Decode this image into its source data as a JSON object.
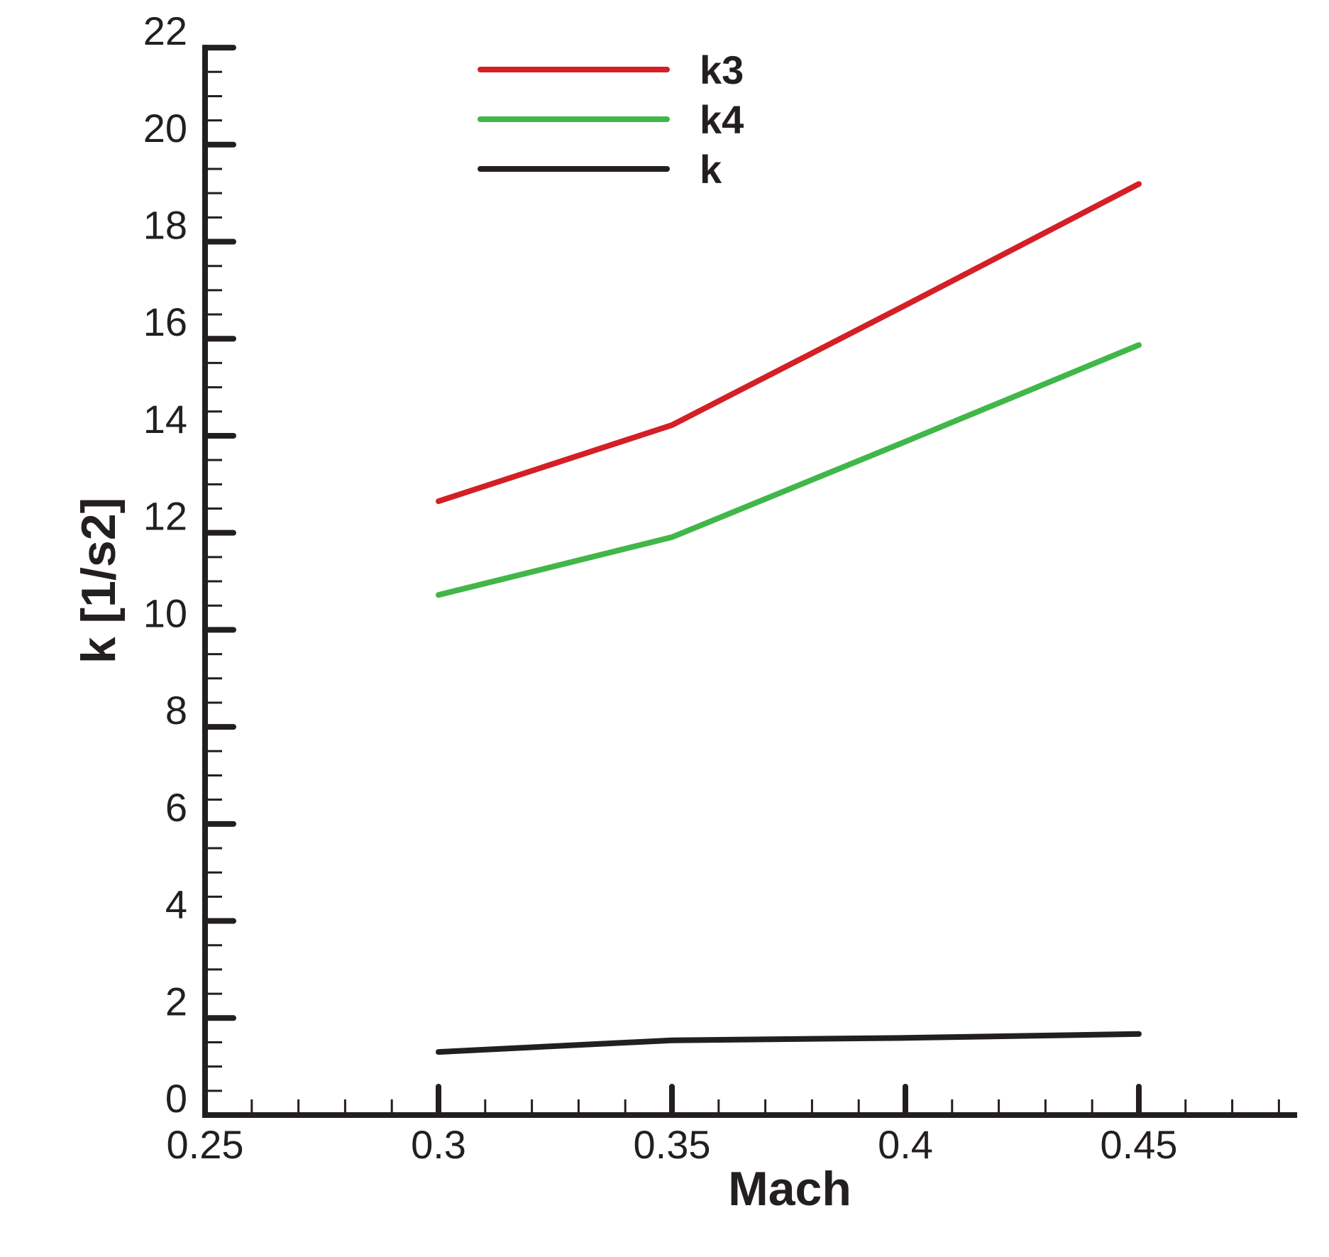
{
  "chart_data": {
    "type": "line",
    "title": "",
    "xlabel": "Mach",
    "ylabel": "k [1/s2]",
    "x": [
      0.3,
      0.35,
      0.4,
      0.45
    ],
    "series": [
      {
        "name": "k3",
        "color": "#d41f26",
        "values": [
          12.65,
          14.22,
          16.69,
          19.19
        ]
      },
      {
        "name": "k4",
        "color": "#41b649",
        "values": [
          10.72,
          11.91,
          13.88,
          15.87
        ]
      },
      {
        "name": "k",
        "color": "#231f20",
        "values": [
          1.3,
          1.54,
          1.59,
          1.67
        ]
      }
    ],
    "xlim": [
      0.25,
      0.4833
    ],
    "ylim": [
      0,
      22
    ],
    "x_ticks": [
      0.25,
      0.3,
      0.35,
      0.4,
      0.45
    ],
    "x_tick_labels": [
      "0.25",
      "0.3",
      "0.35",
      "0.4",
      "0.45"
    ],
    "x_minor_step": 0.01,
    "y_ticks": [
      0,
      2,
      4,
      6,
      8,
      10,
      12,
      14,
      16,
      18,
      20,
      22
    ],
    "y_tick_labels": [
      "0",
      "2",
      "4",
      "6",
      "8",
      "10",
      "12",
      "14",
      "16",
      "18",
      "20",
      "22"
    ],
    "y_minor_step": 0.5,
    "grid": false,
    "legend_position": "top-center",
    "axis_color": "#231f20"
  }
}
